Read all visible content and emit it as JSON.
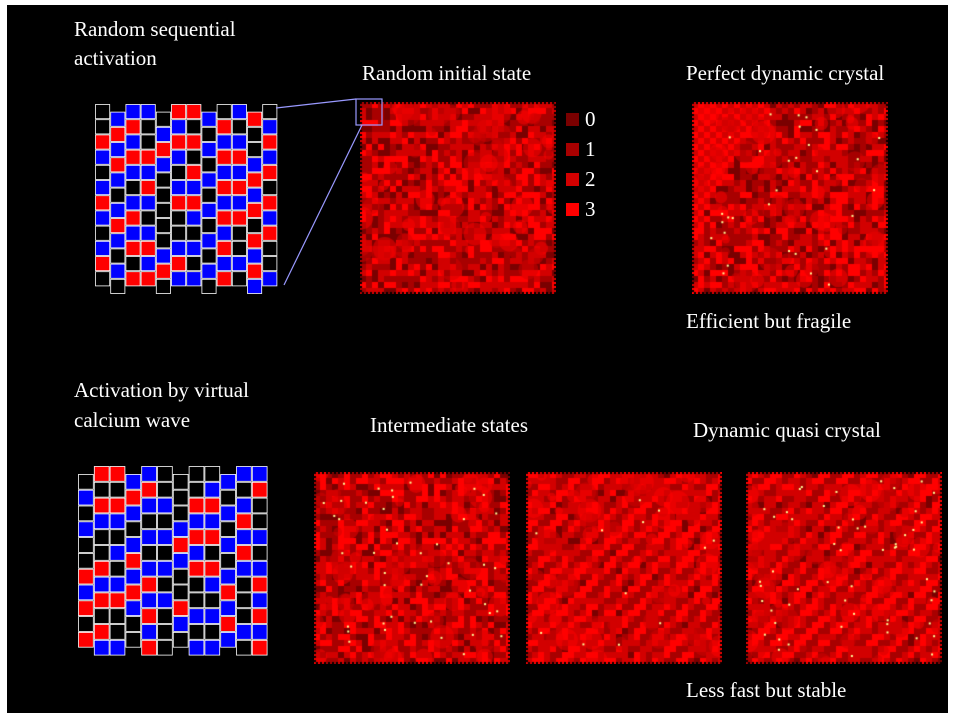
{
  "labels": {
    "random_sequential": [
      "Random sequential",
      "activation"
    ],
    "random_initial": "Random initial state",
    "perfect_crystal": "Perfect dynamic crystal",
    "efficient_fragile": "Efficient but fragile",
    "calcium_wave": [
      "Activation by virtual",
      "calcium wave"
    ],
    "intermediate": "Intermediate states",
    "quasi_crystal": "Dynamic quasi crystal",
    "less_fast_stable": "Less fast but stable"
  },
  "legend": [
    {
      "label": "0",
      "color": "#7a0000"
    },
    {
      "label": "1",
      "color": "#a80000"
    },
    {
      "label": "2",
      "color": "#d20000"
    },
    {
      "label": "3",
      "color": "#ff0000"
    }
  ],
  "colors": {
    "background": "#000000",
    "cell_blue": "#0000ff",
    "cell_red": "#ff0000",
    "cell_outline": "#ffffff",
    "zoom_lines": "#9999ff",
    "dot": "#ffff99"
  }
}
